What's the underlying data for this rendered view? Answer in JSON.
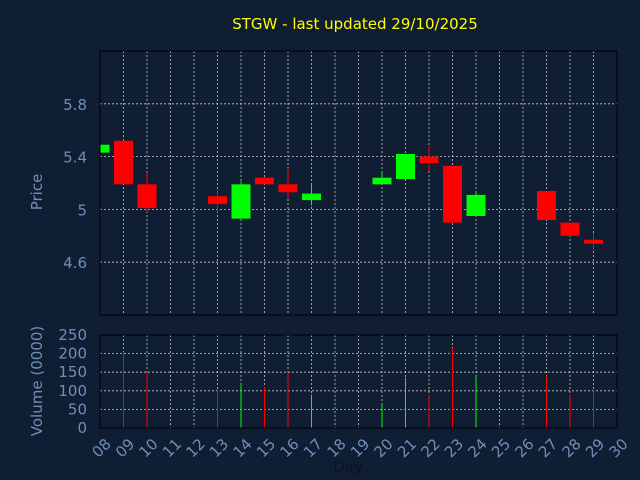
{
  "chart_data": {
    "type": "candlestick",
    "title": "STGW - last updated 29/10/2025",
    "xlabel": "Day",
    "price_panel": {
      "ylabel": "Price",
      "yticks": [
        4.6,
        5,
        5.4,
        5.8
      ],
      "ytick_labels": [
        "4.6",
        "5",
        "5.4",
        "5.8"
      ],
      "ylim": [
        4.2,
        6.2
      ],
      "grid": true
    },
    "volume_panel": {
      "ylabel": "Volume (0000)",
      "yticks": [
        0,
        50,
        100,
        150,
        200,
        250
      ],
      "ytick_labels": [
        "0",
        "50",
        "100",
        "150",
        "200",
        "250"
      ],
      "ylim": [
        0,
        250
      ],
      "grid": true
    },
    "x_labels": [
      "08",
      "09",
      "10",
      "11",
      "12",
      "13",
      "14",
      "15",
      "16",
      "17",
      "18",
      "19",
      "20",
      "21",
      "22",
      "23",
      "24",
      "25",
      "26",
      "27",
      "28",
      "29",
      "30"
    ],
    "colors": {
      "up": "#00ff00",
      "down": "#ff0000",
      "background": "#0f1e33",
      "grid": "#c8c8c8"
    },
    "candles": [
      {
        "day": "08",
        "open": 5.43,
        "close": 5.49,
        "high": 5.49,
        "low": 5.43,
        "volume": 0
      },
      {
        "day": "09",
        "open": 5.52,
        "close": 5.19,
        "high": 5.52,
        "low": 5.19,
        "volume": 205
      },
      {
        "day": "10",
        "open": 5.19,
        "close": 5.01,
        "high": 5.28,
        "low": 4.98,
        "volume": 150
      },
      {
        "day": "13",
        "open": 5.1,
        "close": 5.04,
        "high": 5.15,
        "low": 4.98,
        "volume": 105
      },
      {
        "day": "14",
        "open": 4.93,
        "close": 5.19,
        "high": 5.21,
        "low": 4.93,
        "volume": 115
      },
      {
        "day": "15",
        "open": 5.24,
        "close": 5.19,
        "high": 5.24,
        "low": 5.19,
        "volume": 110
      },
      {
        "day": "16",
        "open": 5.19,
        "close": 5.13,
        "high": 5.31,
        "low": 5.08,
        "volume": 150
      },
      {
        "day": "17",
        "open": 5.07,
        "close": 5.12,
        "high": 5.19,
        "low": 5.03,
        "volume": 90
      },
      {
        "day": "20",
        "open": 5.19,
        "close": 5.24,
        "high": 5.28,
        "low": 5.19,
        "volume": 65
      },
      {
        "day": "21",
        "open": 5.23,
        "close": 5.42,
        "high": 5.42,
        "low": 5.23,
        "volume": 135
      },
      {
        "day": "22",
        "open": 5.4,
        "close": 5.35,
        "high": 5.48,
        "low": 5.29,
        "volume": 90
      },
      {
        "day": "23",
        "open": 5.33,
        "close": 4.9,
        "high": 5.33,
        "low": 4.9,
        "volume": 215
      },
      {
        "day": "24",
        "open": 4.95,
        "close": 5.11,
        "high": 5.14,
        "low": 4.95,
        "volume": 140
      },
      {
        "day": "27",
        "open": 5.14,
        "close": 4.92,
        "high": 5.14,
        "low": 4.92,
        "volume": 140
      },
      {
        "day": "28",
        "open": 4.9,
        "close": 4.8,
        "high": 4.9,
        "low": 4.8,
        "volume": 90
      },
      {
        "day": "29",
        "open": 4.77,
        "close": 4.74,
        "high": 4.82,
        "low": 4.69,
        "volume": 100
      }
    ]
  }
}
